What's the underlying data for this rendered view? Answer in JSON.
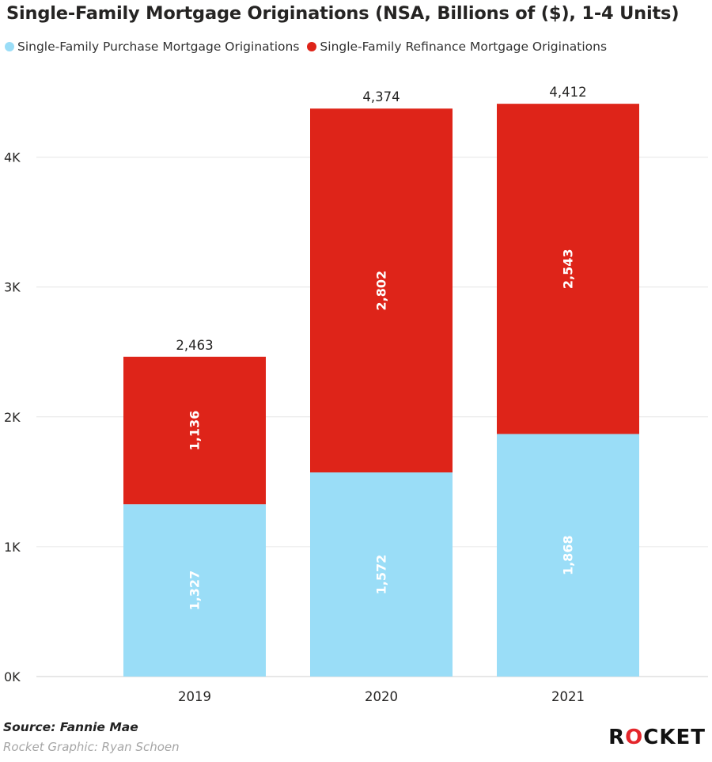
{
  "chart_data": {
    "type": "bar",
    "stacked": true,
    "title": "Single-Family Mortgage Originations (NSA, Billions of ($), 1-4 Units)",
    "categories": [
      "2019",
      "2020",
      "2021"
    ],
    "series": [
      {
        "name": "Single-Family Purchase Mortgage Originations",
        "color": "#9ADDF7",
        "values": [
          1327,
          1572,
          1868
        ],
        "labels": [
          "1,327",
          "1,572",
          "1,868"
        ]
      },
      {
        "name": "Single-Family Refinance Mortgage Originations",
        "color": "#DE2419",
        "values": [
          1136,
          2802,
          2543
        ],
        "labels": [
          "1,136",
          "2,802",
          "2,543"
        ]
      }
    ],
    "totals": [
      "2,463",
      "4,374",
      "4,412"
    ],
    "yticks": [
      0,
      1000,
      2000,
      3000,
      4000
    ],
    "ytick_labels": [
      "0K",
      "1K",
      "2K",
      "3K",
      "4K"
    ],
    "ylim": [
      0,
      4500
    ],
    "legend_position": "top-left",
    "grid": true
  },
  "footer": {
    "source": "Source: Fannie Mae",
    "credit": "Rocket Graphic: Ryan Schoen",
    "logo_before": "R",
    "logo_o": "O",
    "logo_after": "CKET"
  }
}
